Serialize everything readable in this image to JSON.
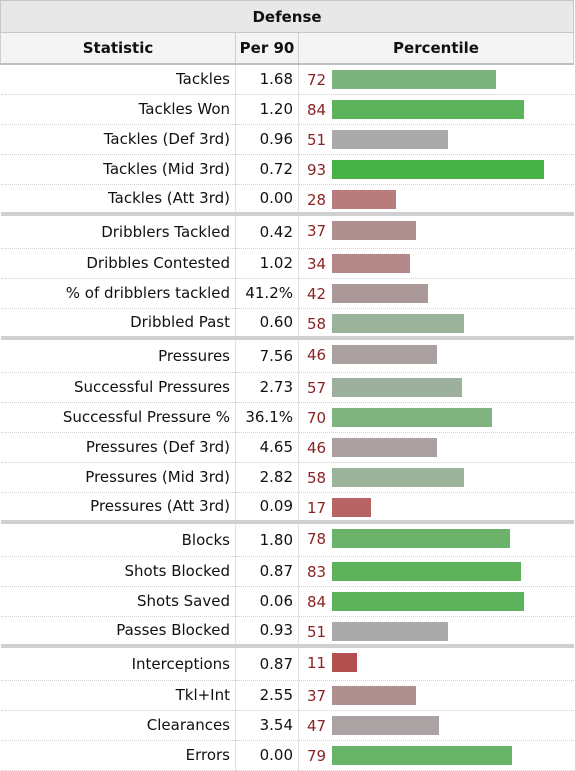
{
  "table": {
    "title": "Defense",
    "columns": [
      "Statistic",
      "Per 90",
      "Percentile"
    ],
    "groups": [
      [
        {
          "stat": "Tackles",
          "per90": "1.68",
          "pct": 72,
          "color": "#7db37d"
        },
        {
          "stat": "Tackles Won",
          "per90": "1.20",
          "pct": 84,
          "color": "#5cb35c"
        },
        {
          "stat": "Tackles (Def 3rd)",
          "per90": "0.96",
          "pct": 51,
          "color": "#aaaaaa"
        },
        {
          "stat": "Tackles (Mid 3rd)",
          "per90": "0.72",
          "pct": 93,
          "color": "#47b347"
        },
        {
          "stat": "Tackles (Att 3rd)",
          "per90": "0.00",
          "pct": 28,
          "color": "#b87c7c"
        }
      ],
      [
        {
          "stat": "Dribblers Tackled",
          "per90": "0.42",
          "pct": 37,
          "color": "#b08f8f"
        },
        {
          "stat": "Dribbles Contested",
          "per90": "1.02",
          "pct": 34,
          "color": "#b48888"
        },
        {
          "stat": "% of dribblers tackled",
          "per90": "41.2%",
          "pct": 42,
          "color": "#ab9999"
        },
        {
          "stat": "Dribbled Past",
          "per90": "0.60",
          "pct": 58,
          "color": "#9bb29b"
        }
      ],
      [
        {
          "stat": "Pressures",
          "per90": "7.56",
          "pct": 46,
          "color": "#aba1a1"
        },
        {
          "stat": "Successful Pressures",
          "per90": "2.73",
          "pct": 57,
          "color": "#9db09d"
        },
        {
          "stat": "Successful Pressure %",
          "per90": "36.1%",
          "pct": 70,
          "color": "#80b380"
        },
        {
          "stat": "Pressures (Def 3rd)",
          "per90": "4.65",
          "pct": 46,
          "color": "#aba1a1"
        },
        {
          "stat": "Pressures (Mid 3rd)",
          "per90": "2.82",
          "pct": 58,
          "color": "#9bb29b"
        },
        {
          "stat": "Pressures (Att 3rd)",
          "per90": "0.09",
          "pct": 17,
          "color": "#b86464"
        }
      ],
      [
        {
          "stat": "Blocks",
          "per90": "1.80",
          "pct": 78,
          "color": "#6bb36b"
        },
        {
          "stat": "Shots Blocked",
          "per90": "0.87",
          "pct": 83,
          "color": "#5cb35c"
        },
        {
          "stat": "Shots Saved",
          "per90": "0.06",
          "pct": 84,
          "color": "#5cb35c"
        },
        {
          "stat": "Passes Blocked",
          "per90": "0.93",
          "pct": 51,
          "color": "#aaaaaa"
        }
      ],
      [
        {
          "stat": "Interceptions",
          "per90": "0.87",
          "pct": 11,
          "color": "#b34f4f"
        },
        {
          "stat": "Tkl+Int",
          "per90": "2.55",
          "pct": 37,
          "color": "#b08f8f"
        },
        {
          "stat": "Clearances",
          "per90": "3.54",
          "pct": 47,
          "color": "#aba3a3"
        },
        {
          "stat": "Errors",
          "per90": "0.00",
          "pct": 79,
          "color": "#68b368"
        }
      ]
    ]
  }
}
